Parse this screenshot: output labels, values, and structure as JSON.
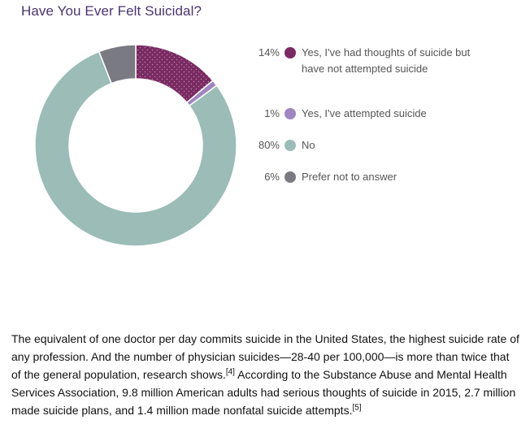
{
  "chart_data": {
    "type": "pie",
    "title": "Have You Ever Felt Suicidal?",
    "donut": true,
    "legend_position": "right",
    "slices": [
      {
        "label": "Yes, I've had thoughts of suicide but have not attempted suicide",
        "value": 14,
        "pct_label": "14%",
        "color": "#7a2a62"
      },
      {
        "label": "Yes, I've attempted suicide",
        "value": 1,
        "pct_label": "1%",
        "color": "#9f86c0"
      },
      {
        "label": "No",
        "value": 80,
        "pct_label": "80%",
        "color": "#9bbcb7"
      },
      {
        "label": "Prefer not to answer",
        "value": 6,
        "pct_label": "6%",
        "color": "#7a7a82"
      }
    ]
  },
  "article": {
    "p1": "The equivalent of one doctor per day commits suicide in the United States, the highest suicide rate of any profession. And the number of physician suicides—28-40 per 100,000—is more than twice that of the general population, research shows.",
    "ref1": "[4]",
    "p2": " According to the Substance Abuse and Mental Health Services Association, 9.8 million American adults had serious thoughts of suicide in 2015, 2.7 million made suicide plans, and 1.4 million made nonfatal suicide attempts.",
    "ref2": "[5]"
  }
}
